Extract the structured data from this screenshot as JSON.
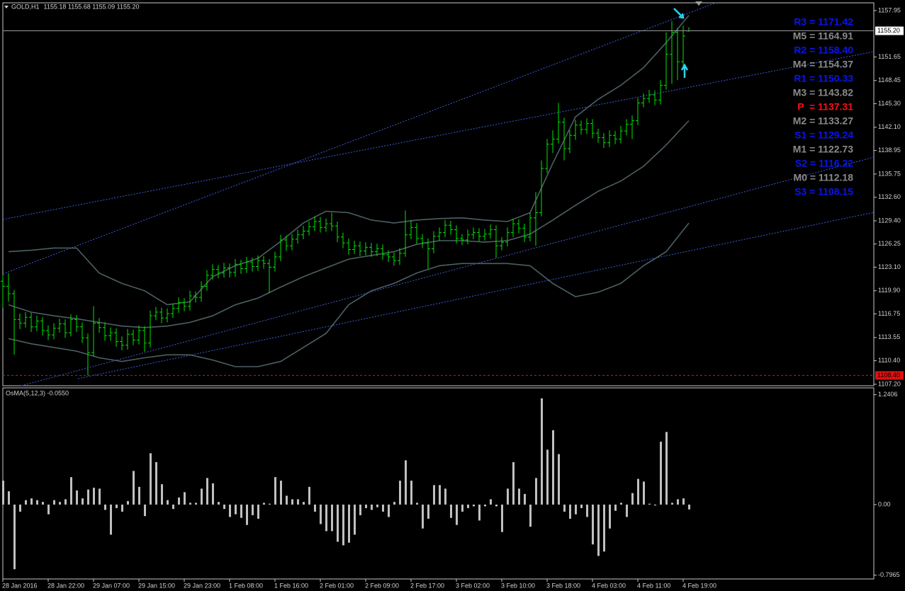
{
  "chart_data": [
    {
      "type": "ohlc",
      "title": "GOLD,H1",
      "subtitle": "1155.18 1155.68 1155.09 1155.20",
      "categories": [
        "28 Jan 2016",
        null,
        null,
        null,
        null,
        null,
        null,
        null,
        "28 Jan 22:00",
        null,
        null,
        null,
        null,
        null,
        null,
        null,
        "29 Jan 07:00",
        null,
        null,
        null,
        null,
        null,
        null,
        null,
        "29 Jan 15:00",
        null,
        null,
        null,
        null,
        null,
        null,
        null,
        "29 Jan 23:00",
        null,
        null,
        null,
        null,
        null,
        null,
        null,
        "1 Feb 08:00",
        null,
        null,
        null,
        null,
        null,
        null,
        null,
        "1 Feb 16:00",
        null,
        null,
        null,
        null,
        null,
        null,
        null,
        "2 Feb 01:00",
        null,
        null,
        null,
        null,
        null,
        null,
        null,
        "2 Feb 09:00",
        null,
        null,
        null,
        null,
        null,
        null,
        null,
        "2 Feb 17:00",
        null,
        null,
        null,
        null,
        null,
        null,
        null,
        "3 Feb 02:00",
        null,
        null,
        null,
        null,
        null,
        null,
        null,
        "3 Feb 10:00",
        null,
        null,
        null,
        null,
        null,
        null,
        null,
        "3 Feb 18:00",
        null,
        null,
        null,
        null,
        null,
        null,
        null,
        "4 Feb 03:00",
        null,
        null,
        null,
        null,
        null,
        null,
        null,
        "4 Feb 11:00",
        null,
        null,
        null,
        null,
        null,
        null,
        null,
        "4 Feb 19:00",
        null
      ],
      "color": "#00e600",
      "open": [
        1121.2,
        1120.5,
        1119.5,
        1116.0,
        1115.5,
        1116.3,
        1115.0,
        1115.8,
        1114.5,
        1113.9,
        1114.8,
        1115.4,
        1114.2,
        1116.0,
        1115.0,
        1113.5,
        1111.5,
        1115.5,
        1114.9,
        1113.8,
        1114.2,
        1113.0,
        1112.5,
        1114.0,
        1113.2,
        1114.5,
        1112.8,
        1116.5,
        1117.0,
        1116.2,
        1116.8,
        1117.5,
        1118.3,
        1117.8,
        1119.2,
        1119.0,
        1120.5,
        1122.0,
        1122.8,
        1122.3,
        1123.0,
        1122.4,
        1123.5,
        1122.9,
        1123.8,
        1123.2,
        1124.0,
        1123.6,
        1123.1,
        1124.5,
        1126.8,
        1126.0,
        1126.9,
        1127.5,
        1128.0,
        1128.6,
        1129.3,
        1128.5,
        1129.0,
        1128.7,
        1127.2,
        1126.4,
        1125.5,
        1126.0,
        1125.3,
        1125.8,
        1125.2,
        1125.6,
        1124.8,
        1124.5,
        1124.0,
        1125.0,
        1127.5,
        1128.5,
        1127.0,
        1126.4,
        1125.6,
        1127.3,
        1127.8,
        1128.8,
        1128.2,
        1127.0,
        1126.8,
        1127.5,
        1127.8,
        1127.3,
        1127.6,
        1128.2,
        1126.0,
        1126.5,
        1127.8,
        1129.0,
        1128.4,
        1127.2,
        1129.8,
        1130.5,
        1136.5,
        1139.8,
        1140.5,
        1142.8,
        1139.2,
        1141.0,
        1142.4,
        1141.8,
        1142.6,
        1141.3,
        1140.7,
        1140.0,
        1141.0,
        1140.5,
        1141.6,
        1142.5,
        1143.0,
        1145.4,
        1146.0,
        1146.5,
        1145.8,
        1147.8,
        1152.0,
        1155.0,
        1151.0,
        1155.18
      ],
      "high": [
        1122.0,
        1122.3,
        1120.0,
        1116.8,
        1117.0,
        1116.9,
        1116.5,
        1116.3,
        1115.2,
        1115.5,
        1116.1,
        1116.0,
        1116.7,
        1116.6,
        1115.6,
        1114.1,
        1117.8,
        1116.2,
        1115.6,
        1114.9,
        1114.8,
        1113.7,
        1114.7,
        1114.6,
        1115.2,
        1115.1,
        1117.2,
        1117.7,
        1117.6,
        1117.5,
        1118.2,
        1119.0,
        1118.9,
        1119.9,
        1119.8,
        1121.2,
        1122.7,
        1123.5,
        1123.4,
        1123.7,
        1123.6,
        1124.2,
        1124.1,
        1124.5,
        1124.4,
        1124.7,
        1124.6,
        1124.2,
        1125.2,
        1127.5,
        1127.4,
        1127.6,
        1128.2,
        1128.7,
        1129.3,
        1130.0,
        1129.9,
        1129.7,
        1130.5,
        1129.3,
        1127.8,
        1127.0,
        1126.7,
        1126.6,
        1126.5,
        1126.4,
        1126.3,
        1126.2,
        1125.4,
        1125.1,
        1125.7,
        1130.8,
        1129.5,
        1129.1,
        1127.6,
        1127.0,
        1128.0,
        1128.5,
        1129.5,
        1129.4,
        1128.8,
        1127.6,
        1128.2,
        1128.5,
        1128.4,
        1128.3,
        1128.9,
        1128.8,
        1127.2,
        1128.5,
        1129.7,
        1129.6,
        1129.0,
        1130.5,
        1133.3,
        1137.6,
        1140.5,
        1141.7,
        1145.4,
        1143.4,
        1141.7,
        1143.1,
        1143.0,
        1143.3,
        1143.2,
        1141.9,
        1141.3,
        1141.7,
        1141.6,
        1142.3,
        1143.2,
        1143.7,
        1146.1,
        1146.7,
        1147.2,
        1147.1,
        1148.5,
        1155.0,
        1156.5,
        1155.6,
        1155.9,
        1155.68
      ],
      "low": [
        1117.6,
        1118.4,
        1111.2,
        1114.7,
        1114.9,
        1114.3,
        1114.4,
        1113.8,
        1113.2,
        1113.3,
        1114.2,
        1113.5,
        1113.7,
        1114.3,
        1112.8,
        1108.4,
        1111.0,
        1114.2,
        1113.1,
        1113.1,
        1112.3,
        1111.8,
        1111.9,
        1112.5,
        1112.6,
        1111.6,
        1112.2,
        1115.9,
        1115.5,
        1115.6,
        1116.2,
        1116.9,
        1117.1,
        1117.2,
        1118.3,
        1118.4,
        1119.9,
        1121.4,
        1121.6,
        1121.7,
        1121.7,
        1121.8,
        1122.2,
        1122.3,
        1122.5,
        1122.6,
        1122.9,
        1119.6,
        1122.5,
        1123.9,
        1125.3,
        1125.4,
        1126.3,
        1126.9,
        1127.4,
        1128.0,
        1127.8,
        1127.9,
        1128.0,
        1126.5,
        1125.7,
        1124.8,
        1124.9,
        1124.6,
        1124.7,
        1124.5,
        1124.6,
        1124.1,
        1123.8,
        1123.3,
        1123.4,
        1124.5,
        1126.9,
        1126.3,
        1125.7,
        1122.9,
        1125.0,
        1126.7,
        1127.2,
        1127.5,
        1126.3,
        1126.1,
        1126.2,
        1126.9,
        1126.6,
        1126.7,
        1127.0,
        1124.4,
        1125.4,
        1125.9,
        1127.2,
        1127.7,
        1126.5,
        1126.6,
        1126.0,
        1130.0,
        1135.9,
        1138.6,
        1139.9,
        1137.6,
        1138.6,
        1140.4,
        1141.1,
        1141.2,
        1140.6,
        1140.0,
        1139.3,
        1139.4,
        1139.8,
        1139.9,
        1141.0,
        1140.5,
        1142.4,
        1144.8,
        1145.4,
        1145.1,
        1145.2,
        1147.2,
        1148.0,
        1148.5,
        1150.4,
        1155.09
      ],
      "close": [
        1120.5,
        1119.5,
        1116.0,
        1115.5,
        1116.3,
        1115.0,
        1115.8,
        1114.5,
        1113.9,
        1114.8,
        1115.4,
        1114.2,
        1116.0,
        1115.0,
        1113.5,
        1111.5,
        1115.5,
        1114.9,
        1113.8,
        1114.2,
        1113.0,
        1112.5,
        1114.0,
        1113.2,
        1114.5,
        1112.8,
        1116.5,
        1117.0,
        1116.2,
        1116.8,
        1117.5,
        1118.3,
        1117.8,
        1119.2,
        1119.0,
        1120.5,
        1122.0,
        1122.8,
        1122.3,
        1123.0,
        1122.4,
        1123.5,
        1122.9,
        1123.8,
        1123.2,
        1124.0,
        1123.6,
        1123.1,
        1124.5,
        1126.8,
        1126.0,
        1126.9,
        1127.5,
        1128.0,
        1128.6,
        1129.3,
        1128.5,
        1129.0,
        1128.7,
        1127.2,
        1126.4,
        1125.5,
        1126.0,
        1125.3,
        1125.8,
        1125.2,
        1125.6,
        1124.8,
        1124.5,
        1124.0,
        1125.0,
        1127.5,
        1128.5,
        1127.0,
        1126.4,
        1125.6,
        1127.3,
        1127.8,
        1128.8,
        1128.2,
        1127.0,
        1126.8,
        1127.5,
        1127.8,
        1127.3,
        1127.6,
        1128.2,
        1126.0,
        1126.5,
        1127.8,
        1129.0,
        1128.4,
        1127.2,
        1129.8,
        1130.5,
        1136.5,
        1139.8,
        1140.5,
        1142.8,
        1139.2,
        1141.0,
        1142.4,
        1141.8,
        1142.6,
        1141.3,
        1140.7,
        1140.0,
        1141.0,
        1140.5,
        1141.6,
        1142.5,
        1143.0,
        1145.4,
        1146.0,
        1146.5,
        1145.8,
        1147.8,
        1152.0,
        1155.0,
        1151.0,
        1154.5,
        1155.2
      ],
      "bands": [
        {
          "color": "#4c6064",
          "x": [
            1,
            5,
            9,
            13,
            17,
            21,
            25,
            29,
            33,
            37,
            41,
            45,
            49,
            53,
            57,
            61,
            65,
            69,
            73,
            77,
            81,
            85,
            89,
            93,
            97,
            101,
            105,
            109,
            113,
            117,
            121
          ],
          "values": [
            1125.2,
            1125.4,
            1125.7,
            1125.7,
            1122.3,
            1120.9,
            1119.9,
            1118.0,
            1118.4,
            1121.8,
            1123.3,
            1124.3,
            1126.6,
            1129.1,
            1130.7,
            1130.5,
            1129.5,
            1129.1,
            1129.5,
            1129.7,
            1129.8,
            1129.5,
            1129.3,
            1130.5,
            1137.2,
            1143.5,
            1145.9,
            1147.8,
            1150.2,
            1153.6,
            1157.3
          ]
        },
        {
          "color": "#4c6064",
          "x": [
            1,
            5,
            9,
            13,
            17,
            21,
            25,
            29,
            33,
            37,
            41,
            45,
            49,
            53,
            57,
            61,
            65,
            69,
            73,
            77,
            81,
            85,
            89,
            93,
            97,
            101,
            105,
            109,
            113,
            117,
            121
          ],
          "values": [
            1118.0,
            1117.0,
            1116.5,
            1116.1,
            1115.6,
            1115.1,
            1114.9,
            1115.1,
            1115.6,
            1116.5,
            1118.0,
            1118.9,
            1120.4,
            1121.8,
            1123.0,
            1124.2,
            1124.7,
            1125.2,
            1126.2,
            1126.7,
            1126.7,
            1126.5,
            1126.7,
            1127.6,
            1129.5,
            1131.5,
            1133.4,
            1134.8,
            1136.8,
            1139.7,
            1143.0
          ]
        },
        {
          "color": "#4c6064",
          "x": [
            1,
            5,
            9,
            13,
            17,
            21,
            25,
            29,
            33,
            37,
            41,
            45,
            49,
            53,
            57,
            61,
            65,
            69,
            73,
            77,
            81,
            85,
            89,
            93,
            97,
            101,
            105,
            109,
            113,
            117,
            121
          ],
          "values": [
            1113.4,
            1112.7,
            1112.2,
            1111.7,
            1110.8,
            1110.3,
            1110.8,
            1111.2,
            1111.2,
            1110.5,
            1109.6,
            1109.6,
            1110.3,
            1112.2,
            1114.1,
            1118.0,
            1119.9,
            1120.9,
            1122.3,
            1123.3,
            1123.6,
            1123.6,
            1123.6,
            1123.3,
            1120.9,
            1119.1,
            1119.7,
            1120.9,
            1123.3,
            1125.2,
            1129.1
          ]
        }
      ],
      "ylim": [
        1107.0,
        1159.0
      ],
      "yticks": [
        1157.95,
        1151.65,
        1148.45,
        {
          "value": 1145.3,
          "label": "1145.30"
        },
        {
          "value": 1142.1,
          "label": "1142.10"
        },
        1138.95,
        1135.75,
        {
          "value": 1132.6,
          "label": "1132.60"
        },
        {
          "value": 1129.4,
          "label": "1129.40"
        },
        1126.25,
        {
          "value": 1123.1,
          "label": "1123.10"
        },
        {
          "value": 1119.9,
          "label": "1119.90"
        },
        1116.75,
        1113.55,
        {
          "value": 1110.4,
          "label": "1110.40"
        },
        {
          "value": 1107.2,
          "label": "1107.20"
        }
      ],
      "current_price": {
        "value": 1155.2,
        "label": "1155.20"
      },
      "low_line": {
        "value": 1108.4,
        "label": "1108.40"
      },
      "pivots": [
        {
          "text": "R3 = 1171.42",
          "color": "#0a14f0"
        },
        {
          "text": "M5 = 1164.91",
          "color": "#8a8a8a"
        },
        {
          "text": "R2 = 1158.40",
          "color": "#0a14f0"
        },
        {
          "text": "M4 = 1154.37",
          "color": "#8a8a8a"
        },
        {
          "text": "R1 = 1150.33",
          "color": "#0a14f0"
        },
        {
          "text": "M3 = 1143.82",
          "color": "#8a8a8a"
        },
        {
          "text": "P  = 1137.31",
          "color": "#ff1010"
        },
        {
          "text": "M2 = 1133.27",
          "color": "#8a8a8a"
        },
        {
          "text": "S1 = 1129.24",
          "color": "#0a14f0"
        },
        {
          "text": "M1 = 1122.73",
          "color": "#8a8a8a"
        },
        {
          "text": "S2 = 1116.22",
          "color": "#0a14f0"
        },
        {
          "text": "M0 = 1112.18",
          "color": "#8a8a8a"
        },
        {
          "text": "S3 = 1108.15",
          "color": "#0a14f0"
        }
      ]
    },
    {
      "type": "bar",
      "title": "OsMA(5,12,3) -0.0550",
      "color": "#c0c0c0",
      "values": [
        0.27,
        0.15,
        -0.73,
        -0.08,
        0.05,
        0.07,
        0.05,
        0.03,
        -0.11,
        0.05,
        0.03,
        0.06,
        0.31,
        0.16,
        0.07,
        0.17,
        0.19,
        0.18,
        -0.06,
        -0.34,
        -0.04,
        -0.08,
        0.04,
        0.38,
        0.2,
        -0.13,
        0.58,
        0.48,
        0.23,
        0.05,
        -0.05,
        0.08,
        0.14,
        0.02,
        0.02,
        0.18,
        0.3,
        0.24,
        0.03,
        -0.05,
        -0.14,
        -0.11,
        -0.15,
        -0.23,
        -0.12,
        -0.16,
        0.02,
        0.01,
        0.31,
        0.27,
        0.1,
        0.06,
        0.06,
        0.03,
        0.2,
        -0.08,
        -0.22,
        -0.3,
        -0.3,
        -0.42,
        -0.46,
        -0.43,
        -0.34,
        -0.12,
        -0.04,
        -0.06,
        -0.03,
        -0.08,
        -0.14,
        0.03,
        0.27,
        0.5,
        0.27,
        0.02,
        -0.27,
        -0.16,
        0.22,
        0.22,
        0.18,
        -0.15,
        -0.23,
        -0.08,
        -0.04,
        -0.02,
        -0.18,
        -0.02,
        0.06,
        -0.02,
        -0.31,
        0.18,
        0.48,
        0.18,
        0.12,
        -0.25,
        0.3,
        1.2,
        0.62,
        0.84,
        0.57,
        -0.08,
        -0.16,
        -0.11,
        -0.04,
        -0.14,
        -0.45,
        -0.58,
        -0.53,
        -0.27,
        -0.07,
        0.02,
        -0.14,
        0.13,
        0.29,
        0.26,
        0.01,
        -0.01,
        0.71,
        0.82,
        0.02,
        0.06,
        0.07,
        -0.055
      ],
      "ylim": [
        -0.84,
        1.31
      ],
      "yticks": [
        1.2406,
        {
          "value": 0,
          "label": "0.00"
        },
        -0.7965
      ]
    }
  ]
}
